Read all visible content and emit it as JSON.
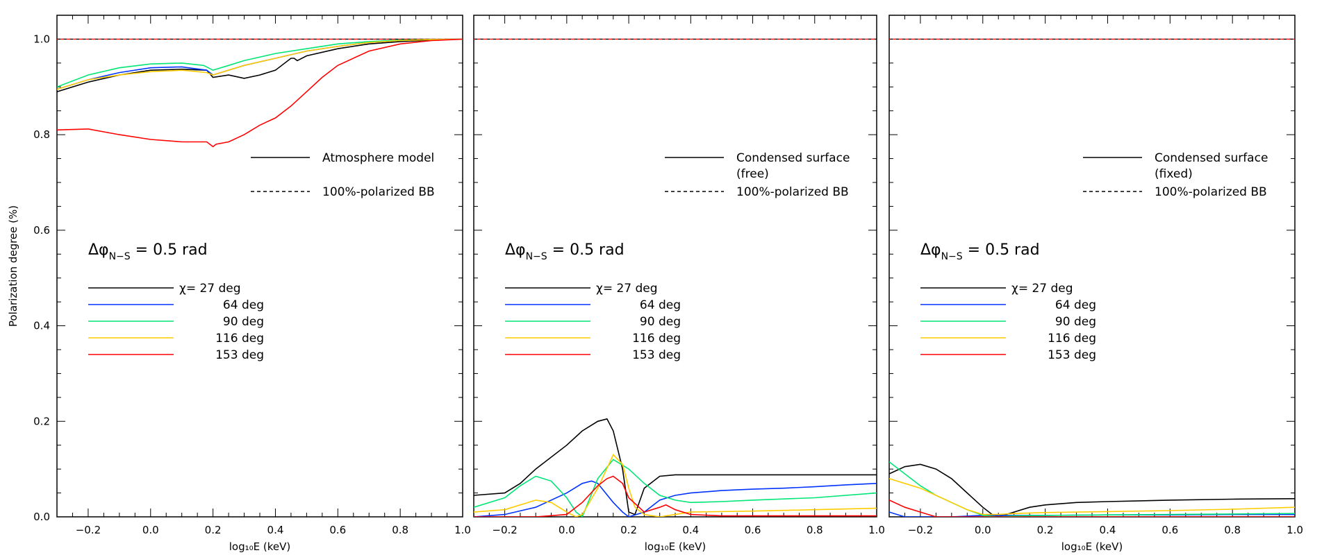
{
  "colors": {
    "27": "#000000",
    "64": "#0033ff",
    "90": "#00e676",
    "116": "#ffcc00",
    "153": "#ff0000",
    "bb_black": "#000000",
    "bb_red": "#ff0000"
  },
  "chart_data": [
    {
      "type": "line",
      "title": "",
      "xlabel": "log₁₀E (keV)",
      "ylabel": "Polarization degree (%)",
      "xlim": [
        -0.3,
        1.0
      ],
      "ylim": [
        0.0,
        1.05
      ],
      "xticks": [
        "−0.2",
        "0.0",
        "0.2",
        "0.4",
        "0.6",
        "0.8",
        "1.0"
      ],
      "yticks": [
        "0.0",
        "0.2",
        "0.4",
        "0.6",
        "0.8",
        "1.0"
      ],
      "model_legend": [
        "Atmosphere model",
        "100%-polarized BB"
      ],
      "annotation": {
        "main": "Δφ",
        "sub": "N−S",
        "rest": " = 0.5 rad"
      },
      "chi_legend": [
        "χ= 27 deg",
        "64 deg",
        "90 deg",
        "116 deg",
        "153 deg"
      ],
      "bb_line": 1.0,
      "series": [
        {
          "name": "27 deg",
          "color_key": "27",
          "x": [
            -0.3,
            -0.2,
            -0.1,
            0.0,
            0.1,
            0.18,
            0.2,
            0.25,
            0.3,
            0.35,
            0.4,
            0.45,
            0.46,
            0.47,
            0.5,
            0.6,
            0.7,
            0.8,
            0.9,
            1.0
          ],
          "y": [
            0.89,
            0.91,
            0.925,
            0.935,
            0.937,
            0.935,
            0.92,
            0.925,
            0.918,
            0.925,
            0.935,
            0.96,
            0.96,
            0.955,
            0.965,
            0.98,
            0.99,
            0.995,
            0.998,
            1.0
          ]
        },
        {
          "name": "64 deg",
          "color_key": "64",
          "x": [
            -0.3,
            -0.2,
            -0.1,
            0.0,
            0.1,
            0.18,
            0.2,
            0.25,
            0.3,
            0.4,
            0.5,
            0.6,
            0.7,
            0.8,
            0.9,
            1.0
          ],
          "y": [
            0.895,
            0.915,
            0.93,
            0.94,
            0.942,
            0.935,
            0.925,
            0.935,
            0.945,
            0.96,
            0.975,
            0.985,
            0.993,
            0.997,
            0.999,
            1.0
          ]
        },
        {
          "name": "90 deg",
          "color_key": "90",
          "x": [
            -0.3,
            -0.2,
            -0.1,
            0.0,
            0.1,
            0.17,
            0.2,
            0.25,
            0.3,
            0.4,
            0.5,
            0.6,
            0.7,
            0.8,
            0.9,
            1.0
          ],
          "y": [
            0.9,
            0.925,
            0.94,
            0.948,
            0.95,
            0.945,
            0.935,
            0.945,
            0.955,
            0.97,
            0.98,
            0.99,
            0.995,
            0.998,
            0.999,
            1.0
          ]
        },
        {
          "name": "116 deg",
          "color_key": "116",
          "x": [
            -0.3,
            -0.2,
            -0.1,
            0.0,
            0.1,
            0.18,
            0.2,
            0.25,
            0.3,
            0.4,
            0.5,
            0.6,
            0.7,
            0.8,
            0.9,
            1.0
          ],
          "y": [
            0.895,
            0.915,
            0.925,
            0.932,
            0.935,
            0.93,
            0.925,
            0.935,
            0.945,
            0.96,
            0.975,
            0.985,
            0.993,
            0.997,
            0.999,
            1.0
          ]
        },
        {
          "name": "153 deg",
          "color_key": "153",
          "x": [
            -0.3,
            -0.2,
            -0.1,
            0.0,
            0.1,
            0.18,
            0.2,
            0.21,
            0.25,
            0.3,
            0.35,
            0.4,
            0.45,
            0.5,
            0.55,
            0.6,
            0.7,
            0.8,
            0.9,
            1.0
          ],
          "y": [
            0.81,
            0.812,
            0.8,
            0.79,
            0.785,
            0.785,
            0.775,
            0.78,
            0.785,
            0.8,
            0.82,
            0.835,
            0.86,
            0.89,
            0.92,
            0.945,
            0.975,
            0.99,
            0.997,
            1.0
          ]
        }
      ]
    },
    {
      "type": "line",
      "title": "",
      "xlabel": "log₁₀E (keV)",
      "ylabel": "",
      "xlim": [
        -0.3,
        1.0
      ],
      "ylim": [
        0.0,
        1.05
      ],
      "xticks": [
        "−0.2",
        "0.0",
        "0.2",
        "0.4",
        "0.6",
        "0.8",
        "1.0"
      ],
      "yticks": [],
      "model_legend": [
        "Condensed surface",
        "(free)",
        "100%-polarized BB"
      ],
      "annotation": {
        "main": "Δφ",
        "sub": "N−S",
        "rest": " = 0.5 rad"
      },
      "chi_legend": [
        "χ= 27 deg",
        "64 deg",
        "90 deg",
        "116 deg",
        "153 deg"
      ],
      "bb_line": 1.0,
      "series": [
        {
          "name": "27 deg",
          "color_key": "27",
          "x": [
            -0.3,
            -0.2,
            -0.15,
            -0.1,
            0.0,
            0.05,
            0.1,
            0.13,
            0.15,
            0.18,
            0.2,
            0.22,
            0.25,
            0.3,
            0.35,
            0.4,
            0.6,
            0.8,
            1.0
          ],
          "y": [
            0.045,
            0.05,
            0.07,
            0.1,
            0.15,
            0.18,
            0.2,
            0.205,
            0.18,
            0.1,
            0.01,
            0.005,
            0.06,
            0.085,
            0.088,
            0.088,
            0.088,
            0.088,
            0.088
          ]
        },
        {
          "name": "64 deg",
          "color_key": "64",
          "x": [
            -0.3,
            -0.2,
            -0.1,
            0.0,
            0.05,
            0.08,
            0.1,
            0.15,
            0.18,
            0.2,
            0.25,
            0.3,
            0.35,
            0.4,
            0.5,
            0.6,
            0.7,
            0.8,
            0.9,
            1.0
          ],
          "y": [
            0.0,
            0.005,
            0.02,
            0.05,
            0.07,
            0.075,
            0.07,
            0.03,
            0.01,
            0.0,
            0.01,
            0.035,
            0.045,
            0.05,
            0.055,
            0.058,
            0.06,
            0.063,
            0.067,
            0.07
          ]
        },
        {
          "name": "90 deg",
          "color_key": "90",
          "x": [
            -0.3,
            -0.2,
            -0.15,
            -0.1,
            -0.05,
            0.0,
            0.03,
            0.05,
            0.1,
            0.15,
            0.2,
            0.25,
            0.3,
            0.35,
            0.4,
            0.5,
            0.6,
            0.8,
            1.0
          ],
          "y": [
            0.02,
            0.04,
            0.065,
            0.085,
            0.075,
            0.04,
            0.01,
            0.0,
            0.08,
            0.12,
            0.1,
            0.07,
            0.045,
            0.035,
            0.03,
            0.032,
            0.035,
            0.04,
            0.05
          ]
        },
        {
          "name": "116 deg",
          "color_key": "116",
          "x": [
            -0.3,
            -0.2,
            -0.15,
            -0.1,
            -0.05,
            0.0,
            0.03,
            0.05,
            0.1,
            0.15,
            0.18,
            0.2,
            0.22,
            0.25,
            0.3,
            0.35,
            0.4,
            0.6,
            0.8,
            1.0
          ],
          "y": [
            0.01,
            0.015,
            0.025,
            0.035,
            0.03,
            0.01,
            0.0,
            0.005,
            0.06,
            0.13,
            0.11,
            0.06,
            0.02,
            0.005,
            0.0,
            0.005,
            0.01,
            0.012,
            0.015,
            0.018
          ]
        },
        {
          "name": "153 deg",
          "color_key": "153",
          "x": [
            -0.3,
            -0.1,
            0.0,
            0.05,
            0.1,
            0.13,
            0.15,
            0.18,
            0.2,
            0.25,
            0.3,
            0.32,
            0.35,
            0.4,
            0.5,
            0.6,
            0.8,
            1.0
          ],
          "y": [
            0.0,
            0.0,
            0.005,
            0.03,
            0.065,
            0.08,
            0.085,
            0.07,
            0.04,
            0.01,
            0.02,
            0.025,
            0.015,
            0.005,
            0.002,
            0.002,
            0.002,
            0.002
          ]
        }
      ]
    },
    {
      "type": "line",
      "title": "",
      "xlabel": "log₁₀E (keV)",
      "ylabel": "",
      "xlim": [
        -0.3,
        1.0
      ],
      "ylim": [
        0.0,
        1.05
      ],
      "xticks": [
        "−0.2",
        "0.0",
        "0.2",
        "0.4",
        "0.6",
        "0.8",
        "1.0"
      ],
      "yticks": [],
      "model_legend": [
        "Condensed surface",
        "(fixed)",
        "100%-polarized BB"
      ],
      "annotation": {
        "main": "Δφ",
        "sub": "N−S",
        "rest": " = 0.5 rad"
      },
      "chi_legend": [
        "χ= 27 deg",
        "64 deg",
        "90 deg",
        "116 deg",
        "153 deg"
      ],
      "bb_line": 1.0,
      "series": [
        {
          "name": "27 deg",
          "color_key": "27",
          "x": [
            -0.3,
            -0.25,
            -0.2,
            -0.15,
            -0.1,
            -0.05,
            0.0,
            0.03,
            0.05,
            0.1,
            0.15,
            0.2,
            0.3,
            0.4,
            0.6,
            0.8,
            1.0
          ],
          "y": [
            0.09,
            0.105,
            0.11,
            0.1,
            0.08,
            0.05,
            0.02,
            0.005,
            0.0,
            0.01,
            0.02,
            0.025,
            0.03,
            0.032,
            0.035,
            0.037,
            0.038
          ]
        },
        {
          "name": "64 deg",
          "color_key": "64",
          "x": [
            -0.3,
            -0.25,
            -0.2,
            -0.15,
            -0.1,
            0.0,
            0.05,
            0.1,
            0.2,
            0.4,
            0.6,
            0.8,
            1.0
          ],
          "y": [
            0.01,
            0.0,
            0.0,
            0.0,
            0.0,
            0.003,
            0.003,
            0.003,
            0.003,
            0.004,
            0.004,
            0.005,
            0.005
          ]
        },
        {
          "name": "90 deg",
          "color_key": "90",
          "x": [
            -0.3,
            -0.25,
            -0.2,
            -0.15,
            -0.1,
            -0.05,
            0.0,
            0.05,
            0.1,
            0.2,
            0.4,
            0.6,
            0.8,
            1.0
          ],
          "y": [
            0.115,
            0.09,
            0.065,
            0.045,
            0.03,
            0.015,
            0.003,
            0.0,
            0.002,
            0.003,
            0.004,
            0.005,
            0.006,
            0.007
          ]
        },
        {
          "name": "116 deg",
          "color_key": "116",
          "x": [
            -0.3,
            -0.25,
            -0.2,
            -0.15,
            -0.1,
            -0.05,
            0.0,
            0.05,
            0.1,
            0.2,
            0.4,
            0.6,
            0.8,
            1.0
          ],
          "y": [
            0.08,
            0.07,
            0.06,
            0.045,
            0.03,
            0.015,
            0.005,
            0.005,
            0.007,
            0.009,
            0.011,
            0.013,
            0.016,
            0.02
          ]
        },
        {
          "name": "153 deg",
          "color_key": "153",
          "x": [
            -0.3,
            -0.25,
            -0.2,
            -0.15,
            -0.1,
            -0.05,
            0.0,
            0.05,
            0.2,
            0.4,
            0.6,
            0.8,
            1.0
          ],
          "y": [
            0.035,
            0.02,
            0.01,
            0.0,
            0.0,
            0.0,
            0.0,
            0.0,
            0.0,
            0.0,
            0.0,
            0.0,
            0.0
          ]
        }
      ]
    }
  ]
}
